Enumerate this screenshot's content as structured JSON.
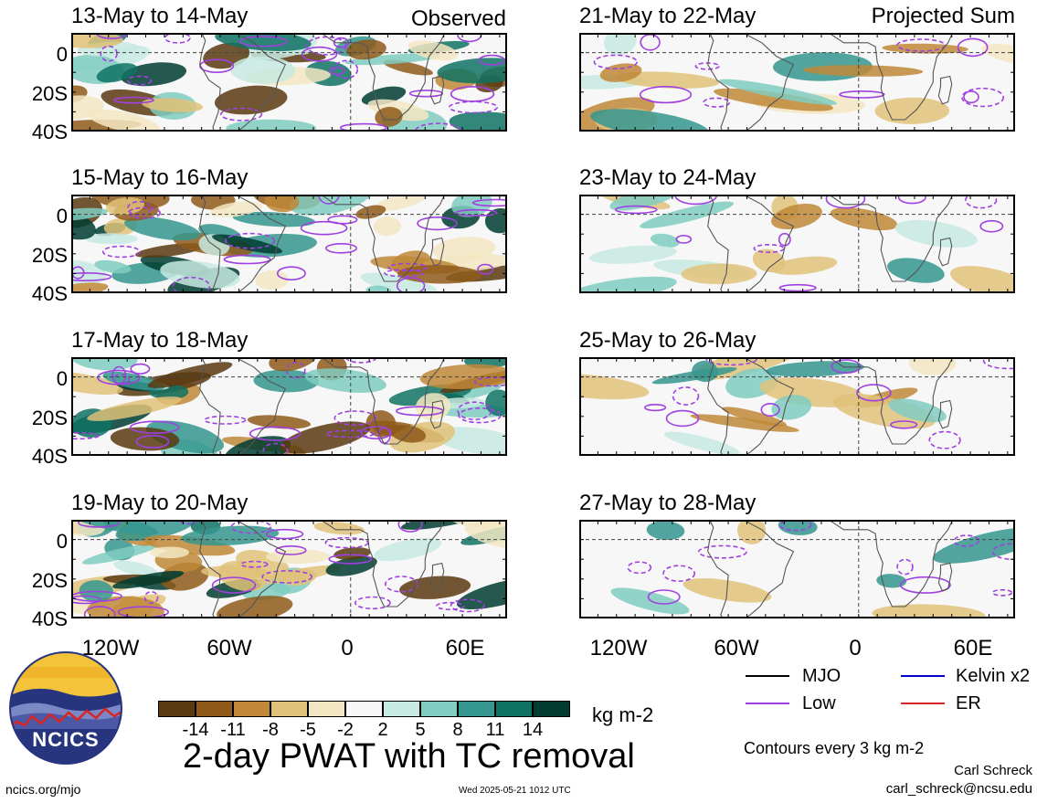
{
  "panels_left": [
    {
      "date": "13-May to 14-May",
      "label": "Observed"
    },
    {
      "date": "15-May to 16-May",
      "label": ""
    },
    {
      "date": "17-May to 18-May",
      "label": ""
    },
    {
      "date": "19-May to 20-May",
      "label": ""
    }
  ],
  "panels_right": [
    {
      "date": "21-May to 22-May",
      "label": "Projected Sum"
    },
    {
      "date": "23-May to 24-May",
      "label": ""
    },
    {
      "date": "25-May to 26-May",
      "label": ""
    },
    {
      "date": "27-May to 28-May",
      "label": ""
    }
  ],
  "lat_labels": [
    "0",
    "20S",
    "40S"
  ],
  "lon_labels": [
    "120W",
    "60W",
    "0",
    "60E"
  ],
  "colorbar": {
    "ticks": [
      "-14",
      "-11",
      "-8",
      "-5",
      "-2",
      "2",
      "5",
      "8",
      "11",
      "14"
    ],
    "colors": [
      "#5a3a10",
      "#8f5a1a",
      "#c08838",
      "#e0c27a",
      "#f3e7c3",
      "#f7f7f7",
      "#c7eae2",
      "#80cdc1",
      "#35978f",
      "#0f7264",
      "#003c30"
    ],
    "units": "kg m-2"
  },
  "title": "2-day PWAT with TC removal",
  "legend": [
    {
      "name": "MJO",
      "color": "#000000"
    },
    {
      "name": "Kelvin x2",
      "color": "#0000cc"
    },
    {
      "name": "Low",
      "color": "#a040e0"
    },
    {
      "name": "ER",
      "color": "#dd2222"
    }
  ],
  "contours_note": "Contours every 3 kg m-2",
  "logo_text": "NCICS",
  "footer": {
    "left": "ncics.org/mjo",
    "center": "Wed 2025-05-21 1012 UTC",
    "author": "Carl Schreck",
    "email": "carl_schreck@ncsu.edu"
  }
}
